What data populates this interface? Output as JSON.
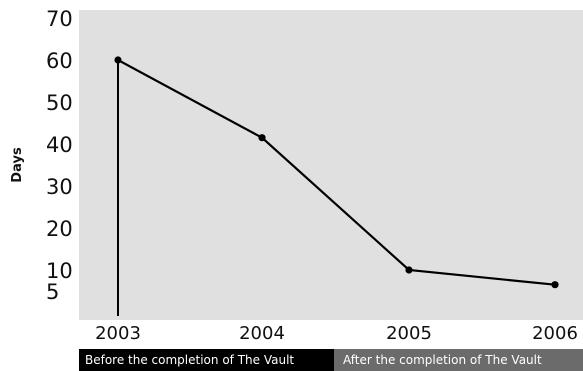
{
  "chart_data": {
    "type": "line",
    "title": "",
    "xlabel": "",
    "ylabel": "Days",
    "categories": [
      "2003",
      "2004",
      "2005",
      "2006"
    ],
    "values": [
      60,
      41.5,
      10,
      6.5
    ],
    "y_ticks": [
      70,
      60,
      50,
      40,
      30,
      20,
      10,
      5
    ],
    "ylim": [
      0,
      70
    ],
    "grid": false,
    "background": "#e0e0e0",
    "line_color": "#000000",
    "annotations": {
      "before": "Before the completion of The Vault",
      "after": "After the completion of The Vault"
    }
  }
}
